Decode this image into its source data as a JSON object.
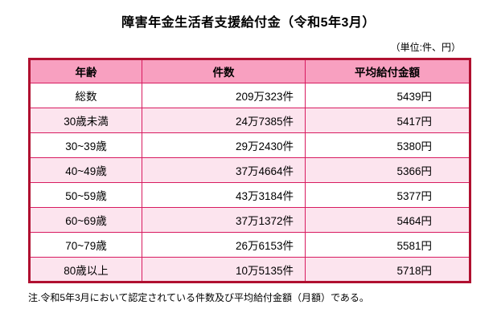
{
  "page": {
    "title": "障害年金生活者支援給付金（令和5年3月）",
    "unit_note": "（単位:件、円）",
    "footnote": "注.令和5年3月において認定されている件数及び平均給付金額（月額）である。"
  },
  "chart_data": {
    "type": "table",
    "title": "障害年金生活者支援給付金（令和5年3月）",
    "unit": "（単位:件、円）",
    "columns": [
      "年齢",
      "件数",
      "平均給付金額"
    ],
    "rows": [
      [
        "総数",
        "209万323件",
        "5439円"
      ],
      [
        "30歳未満",
        "24万7385件",
        "5417円"
      ],
      [
        "30~39歳",
        "29万2430件",
        "5380円"
      ],
      [
        "40~49歳",
        "37万4664件",
        "5366円"
      ],
      [
        "50~59歳",
        "43万3184件",
        "5377円"
      ],
      [
        "60~69歳",
        "37万1372件",
        "5464円"
      ],
      [
        "70~79歳",
        "26万6153件",
        "5581円"
      ],
      [
        "80歳以上",
        "10万5135件",
        "5718円"
      ]
    ],
    "counts_numeric": [
      2090323,
      247385,
      292430,
      374664,
      433184,
      371372,
      266153,
      105135
    ],
    "average_amounts_yen": [
      5439,
      5417,
      5380,
      5366,
      5377,
      5464,
      5581,
      5718
    ],
    "note": "注.令和5年3月において認定されている件数及び平均給付金額（月額）である。",
    "layout": {
      "grid": true,
      "legend": false,
      "alternating_row_shading": true
    }
  },
  "colors": {
    "header_bg": "#f8a0c0",
    "alt_row_bg": "#fce4ee",
    "inner_border": "#d81b60",
    "outer_border": "#b01030",
    "text": "#000000",
    "background": "#ffffff"
  }
}
